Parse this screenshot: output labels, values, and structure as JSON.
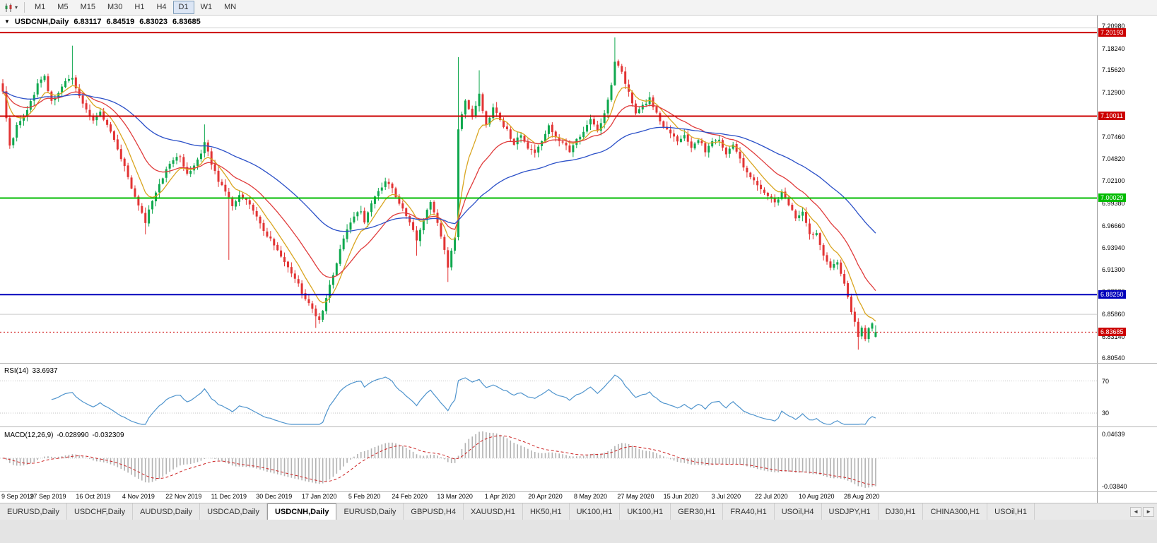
{
  "toolbar": {
    "chart_type_icon": "candlestick-chart-icon",
    "dropdown_icon": "chevron-down",
    "timeframes": [
      "M1",
      "M5",
      "M15",
      "M30",
      "H1",
      "H4",
      "D1",
      "W1",
      "MN"
    ],
    "active_timeframe": "D1"
  },
  "chart": {
    "title": "USDCNH,Daily",
    "ohlc": {
      "open": "6.83117",
      "high": "6.84519",
      "low": "6.83023",
      "close": "6.83685"
    }
  },
  "panes": {
    "rsi": {
      "label": "RSI(14)",
      "value": "33.6937",
      "level_labels": [
        "70",
        "30"
      ]
    },
    "macd": {
      "label": "MACD(12,26,9)",
      "main_value": "-0.028990",
      "signal_value": "-0.032309",
      "axis_labels": [
        "0.04639",
        "-0.03840"
      ]
    }
  },
  "tabbar": {
    "tabs": [
      "EURUSD,Daily",
      "USDCHF,Daily",
      "AUDUSD,Daily",
      "USDCAD,Daily",
      "USDCNH,Daily",
      "EURUSD,Daily",
      "GBPUSD,H4",
      "XAUUSD,H1",
      "HK50,H1",
      "UK100,H1",
      "UK100,H1",
      "GER30,H1",
      "FRA40,H1",
      "USOil,H4",
      "USDJPY,H1",
      "DJ30,H1",
      "CHINA300,H1",
      "USOil,H1"
    ],
    "active_index": 4,
    "scroll_left": "◄",
    "scroll_right": "►"
  },
  "colors": {
    "up_candle": "#0fa84e",
    "down_candle": "#e23434",
    "ma_fast": "#d9a520",
    "ma_mid": "#e03c3c",
    "ma_slow": "#2b50c8",
    "rsi_line": "#4f94cd",
    "macd_hist": "#b2b2b2",
    "macd_signal": "#cc2222",
    "resistance_red": "#cc0000",
    "pivot_green": "#00bb00",
    "support_blue": "#0000bb"
  },
  "chart_data": {
    "type": "candlestick",
    "symbol": "USDCNH",
    "timeframe": "Daily",
    "current": {
      "open": 6.83117,
      "high": 6.84519,
      "low": 6.83023,
      "close": 6.83685
    },
    "bar_count": 252,
    "bars_per_label": 13,
    "x_labels": [
      "9 Sep 2019",
      "27 Sep 2019",
      "16 Oct 2019",
      "4 Nov 2019",
      "22 Nov 2019",
      "11 Dec 2019",
      "30 Dec 2019",
      "17 Jan 2020",
      "5 Feb 2020",
      "24 Feb 2020",
      "13 Mar 2020",
      "1 Apr 2020",
      "20 Apr 2020",
      "8 May 2020",
      "27 May 2020",
      "15 Jun 2020",
      "3 Jul 2020",
      "22 Jul 2020",
      "10 Aug 2020",
      "28 Aug 2020"
    ],
    "y_axis_ticks": [
      "7.20980",
      "7.18240",
      "7.15620",
      "7.12900",
      "7.10180",
      "7.07460",
      "7.04820",
      "7.02100",
      "6.99380",
      "6.96660",
      "6.93940",
      "6.91300",
      "6.88580",
      "6.85860",
      "6.83140",
      "6.80540"
    ],
    "price_lines": [
      {
        "price": 7.20193,
        "label": "7.20193",
        "color": "#cc0000",
        "width": 2
      },
      {
        "price": 7.10011,
        "label": "7.10011",
        "color": "#cc0000",
        "width": 2
      },
      {
        "price": 7.00029,
        "label": "7.00029",
        "color": "#00bb00",
        "width": 2
      },
      {
        "price": 6.8825,
        "label": "6.88250",
        "color": "#0000bb",
        "width": 2
      },
      {
        "price": 6.8586,
        "label": "",
        "color": "#cccccc",
        "width": 1
      }
    ],
    "current_price_line": {
      "price": 6.83685,
      "label": "6.83685",
      "color": "#cc0000"
    },
    "moving_averages": [
      {
        "type": "ema",
        "period": 8,
        "color": "#d9a520"
      },
      {
        "type": "ema",
        "period": 20,
        "color": "#e03c3c"
      },
      {
        "type": "ema",
        "period": 55,
        "color": "#2b50c8"
      }
    ],
    "indicators": {
      "rsi": {
        "period": 14,
        "value": 33.6937,
        "levels": [
          70,
          30
        ]
      },
      "macd": {
        "fast": 12,
        "slow": 26,
        "signal": 9,
        "main": -0.02899,
        "signal_value": -0.032309,
        "axis_max": 0.04639,
        "axis_min": -0.0384
      }
    },
    "anchors": [
      [
        0,
        7.128
      ],
      [
        1,
        7.098
      ],
      [
        2,
        7.062
      ],
      [
        4,
        7.088
      ],
      [
        6,
        7.098
      ],
      [
        8,
        7.118
      ],
      [
        10,
        7.138
      ],
      [
        12,
        7.148
      ],
      [
        14,
        7.118
      ],
      [
        16,
        7.128
      ],
      [
        18,
        7.142
      ],
      [
        20,
        7.148
      ],
      [
        22,
        7.124
      ],
      [
        24,
        7.108
      ],
      [
        26,
        7.094
      ],
      [
        28,
        7.108
      ],
      [
        30,
        7.088
      ],
      [
        32,
        7.07
      ],
      [
        34,
        7.048
      ],
      [
        36,
        7.026
      ],
      [
        38,
        7.002
      ],
      [
        40,
        6.984
      ],
      [
        41,
        6.972
      ],
      [
        43,
        6.998
      ],
      [
        45,
        7.018
      ],
      [
        47,
        7.034
      ],
      [
        49,
        7.046
      ],
      [
        51,
        7.052
      ],
      [
        53,
        7.028
      ],
      [
        55,
        7.04
      ],
      [
        57,
        7.054
      ],
      [
        58,
        7.068
      ],
      [
        60,
        7.042
      ],
      [
        62,
        7.022
      ],
      [
        64,
        7.008
      ],
      [
        66,
        6.992
      ],
      [
        68,
        7.002
      ],
      [
        70,
        6.996
      ],
      [
        72,
        6.986
      ],
      [
        74,
        6.968
      ],
      [
        76,
        6.954
      ],
      [
        78,
        6.944
      ],
      [
        80,
        6.93
      ],
      [
        82,
        6.916
      ],
      [
        84,
        6.904
      ],
      [
        86,
        6.886
      ],
      [
        88,
        6.872
      ],
      [
        90,
        6.856
      ],
      [
        91,
        6.85
      ],
      [
        93,
        6.878
      ],
      [
        95,
        6.908
      ],
      [
        97,
        6.938
      ],
      [
        99,
        6.962
      ],
      [
        101,
        6.976
      ],
      [
        103,
        6.986
      ],
      [
        104,
        6.972
      ],
      [
        106,
        6.992
      ],
      [
        108,
        7.008
      ],
      [
        110,
        7.022
      ],
      [
        112,
        7.012
      ],
      [
        114,
        6.994
      ],
      [
        116,
        6.978
      ],
      [
        118,
        6.96
      ],
      [
        119,
        6.948
      ],
      [
        121,
        6.972
      ],
      [
        123,
        6.996
      ],
      [
        125,
        6.97
      ],
      [
        127,
        6.936
      ],
      [
        128,
        6.918
      ],
      [
        130,
        6.95
      ],
      [
        131,
        7.086
      ],
      [
        133,
        7.118
      ],
      [
        135,
        7.098
      ],
      [
        137,
        7.128
      ],
      [
        139,
        7.088
      ],
      [
        141,
        7.112
      ],
      [
        143,
        7.096
      ],
      [
        145,
        7.082
      ],
      [
        147,
        7.066
      ],
      [
        149,
        7.078
      ],
      [
        151,
        7.062
      ],
      [
        153,
        7.056
      ],
      [
        155,
        7.07
      ],
      [
        157,
        7.088
      ],
      [
        159,
        7.074
      ],
      [
        161,
        7.066
      ],
      [
        163,
        7.058
      ],
      [
        165,
        7.072
      ],
      [
        167,
        7.082
      ],
      [
        169,
        7.096
      ],
      [
        171,
        7.084
      ],
      [
        173,
        7.102
      ],
      [
        175,
        7.136
      ],
      [
        176,
        7.168
      ],
      [
        178,
        7.152
      ],
      [
        180,
        7.128
      ],
      [
        182,
        7.102
      ],
      [
        184,
        7.112
      ],
      [
        186,
        7.122
      ],
      [
        188,
        7.102
      ],
      [
        190,
        7.086
      ],
      [
        192,
        7.078
      ],
      [
        194,
        7.068
      ],
      [
        196,
        7.078
      ],
      [
        198,
        7.062
      ],
      [
        200,
        7.072
      ],
      [
        202,
        7.058
      ],
      [
        204,
        7.068
      ],
      [
        206,
        7.072
      ],
      [
        208,
        7.056
      ],
      [
        210,
        7.066
      ],
      [
        212,
        7.048
      ],
      [
        214,
        7.032
      ],
      [
        216,
        7.022
      ],
      [
        218,
        7.012
      ],
      [
        220,
        7.002
      ],
      [
        222,
        6.994
      ],
      [
        224,
        7.008
      ],
      [
        226,
        6.994
      ],
      [
        228,
        6.974
      ],
      [
        230,
        6.982
      ],
      [
        232,
        6.954
      ],
      [
        234,
        6.958
      ],
      [
        236,
        6.932
      ],
      [
        238,
        6.916
      ],
      [
        240,
        6.924
      ],
      [
        242,
        6.894
      ],
      [
        244,
        6.862
      ],
      [
        246,
        6.832
      ],
      [
        247,
        6.842
      ],
      [
        248,
        6.826
      ],
      [
        249,
        6.844
      ],
      [
        250,
        6.848
      ],
      [
        251,
        6.83685
      ]
    ],
    "wicks": [
      {
        "i": 20,
        "h": 7.186
      },
      {
        "i": 41,
        "l": 6.956
      },
      {
        "i": 58,
        "h": 7.09
      },
      {
        "i": 65,
        "l": 6.925
      },
      {
        "i": 90,
        "l": 6.842
      },
      {
        "i": 119,
        "l": 6.93
      },
      {
        "i": 128,
        "l": 6.898
      },
      {
        "i": 131,
        "h": 7.172
      },
      {
        "i": 137,
        "h": 7.156
      },
      {
        "i": 176,
        "h": 7.196
      },
      {
        "i": 246,
        "l": 6.8155
      }
    ]
  }
}
